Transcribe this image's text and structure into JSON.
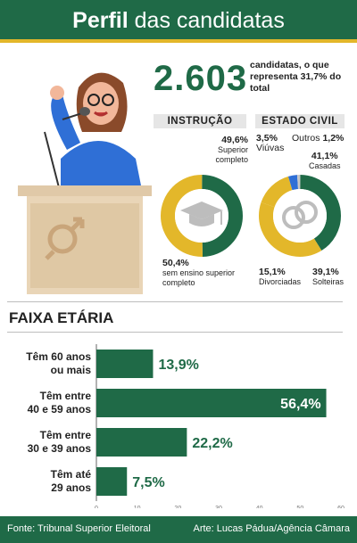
{
  "header": {
    "title_bold": "Perfil",
    "title_rest": " das candidatas"
  },
  "summary": {
    "total": "2.603",
    "description": "candidatas, o que representa 31,7% do total"
  },
  "education": {
    "label": "INSTRUÇÃO",
    "complete_pct": "49,6%",
    "complete_text": "Superior completo",
    "without_pct": "50,4%",
    "without_text": "sem ensino superior completo",
    "values": [
      49.6,
      50.4
    ]
  },
  "civil": {
    "label": "ESTADO CIVIL",
    "viuvas_pct": "3,5%",
    "viuvas_text": "Viúvas",
    "outros_text": "Outros",
    "outros_pct": "1,2%",
    "casadas_pct": "41,1%",
    "casadas_text": "Casadas",
    "divorciadas_pct": "15,1%",
    "divorciadas_text": "Divorciadas",
    "solteiras_pct": "39,1%",
    "solteiras_text": "Solteiras",
    "values": [
      41.1,
      39.1,
      15.1,
      3.5,
      1.2
    ]
  },
  "chart_data": {
    "type": "bar",
    "title": "FAIXA ETÁRIA",
    "categories": [
      [
        "Têm 60 anos",
        "ou mais"
      ],
      [
        "Têm entre",
        "40 e 59 anos"
      ],
      [
        "Têm entre",
        "30 e 39 anos"
      ],
      [
        "Têm até",
        "29 anos"
      ]
    ],
    "values": [
      13.9,
      56.4,
      22.2,
      7.5
    ],
    "value_labels": [
      "13,9%",
      "56,4%",
      "22,2%",
      "7,5%"
    ],
    "x_ticks": [
      "0",
      "10",
      "20",
      "30",
      "40",
      "50",
      "60"
    ],
    "xlim": [
      0,
      60
    ],
    "grid": false
  },
  "footer": {
    "source": "Fonte: Tribunal Superior Eleitoral",
    "credit": "Arte: Lucas Pádua/Agência Câmara"
  },
  "colors": {
    "green": "#1f6a47",
    "yellow": "#e3b72a",
    "blue": "#2f6fd6",
    "gray": "#c6c6c6"
  }
}
